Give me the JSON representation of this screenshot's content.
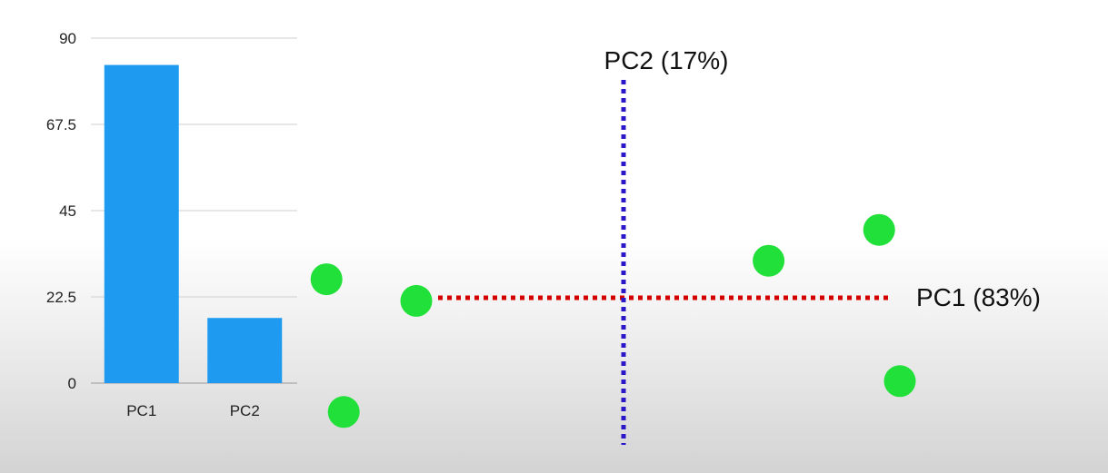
{
  "chart_data": [
    {
      "type": "bar",
      "categories": [
        "PC1",
        "PC2"
      ],
      "values": [
        83,
        17
      ],
      "ylim": [
        0,
        90
      ],
      "yticks": [
        "0",
        "22.5",
        "45",
        "67.5",
        "90"
      ],
      "grid": true,
      "bar_color": "#1e9bf0"
    },
    {
      "type": "scatter",
      "xlabel": "PC1 (83%)",
      "ylabel": "PC2 (17%)",
      "xlim": [
        -5,
        7
      ],
      "ylim": [
        -4,
        6
      ],
      "points": [
        {
          "x": -4.3,
          "y": 0.3
        },
        {
          "x": -3.0,
          "y": -0.05
        },
        {
          "x": -4.05,
          "y": -1.85
        },
        {
          "x": 2.1,
          "y": 0.6
        },
        {
          "x": 3.7,
          "y": 1.1
        },
        {
          "x": 4.0,
          "y": -1.35
        }
      ],
      "x_axis_color": "#d40000",
      "y_axis_color": "#2a17c9",
      "point_color": "#22e03a"
    }
  ]
}
